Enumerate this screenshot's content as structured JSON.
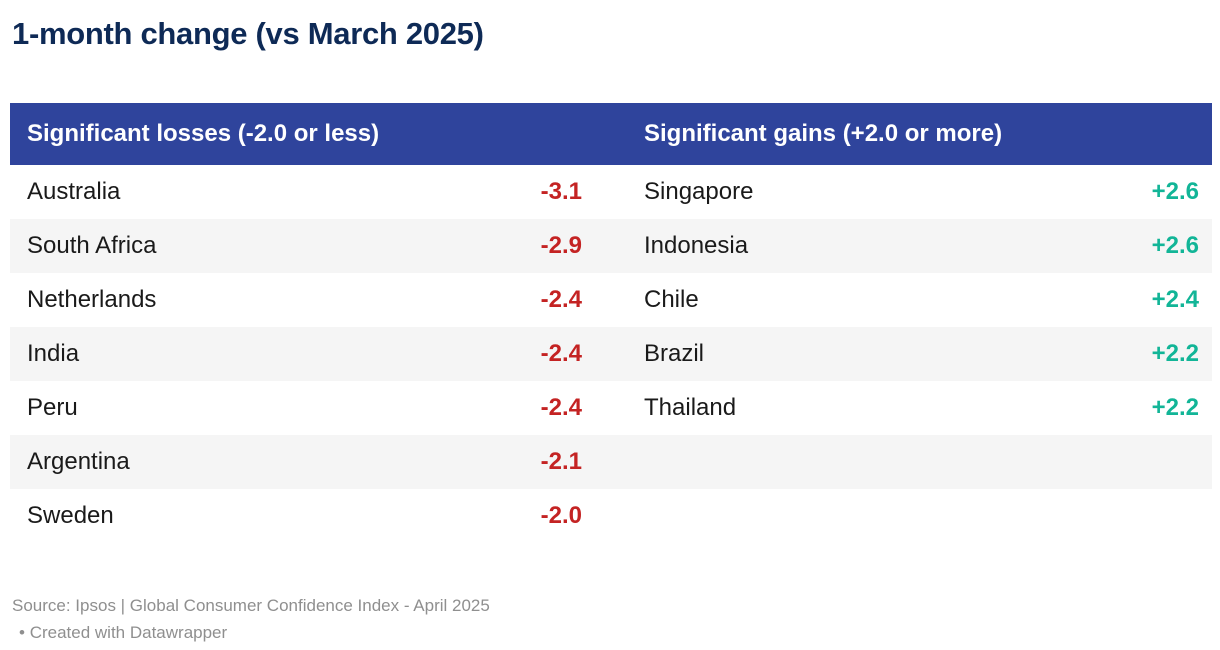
{
  "title": "1-month change (vs March 2025)",
  "table": {
    "header_losses": "Significant losses (-2.0 or less)",
    "header_gains": "Significant gains (+2.0 or more)"
  },
  "chart_data": {
    "type": "table",
    "title": "1-month change (vs March 2025)",
    "columns": [
      "Significant losses (-2.0 or less)",
      "Significant gains (+2.0 or more)"
    ],
    "losses": [
      {
        "country": "Australia",
        "value": "-3.1"
      },
      {
        "country": "South Africa",
        "value": "-2.9"
      },
      {
        "country": "Netherlands",
        "value": "-2.4"
      },
      {
        "country": "India",
        "value": "-2.4"
      },
      {
        "country": "Peru",
        "value": "-2.4"
      },
      {
        "country": "Argentina",
        "value": "-2.1"
      },
      {
        "country": "Sweden",
        "value": "-2.0"
      }
    ],
    "gains": [
      {
        "country": "Singapore",
        "value": "+2.6"
      },
      {
        "country": "Indonesia",
        "value": "+2.6"
      },
      {
        "country": "Chile",
        "value": "+2.4"
      },
      {
        "country": "Brazil",
        "value": "+2.2"
      },
      {
        "country": "Thailand",
        "value": "+2.2"
      }
    ],
    "layout_hints": {
      "zebra_striping": true,
      "loss_values_bold_red": true,
      "gain_values_bold_teal": true
    }
  },
  "footer": {
    "source": "Source: Ipsos | Global Consumer Confidence Index - April 2025",
    "attribution_bullet": "•",
    "attribution": "Created with Datawrapper"
  },
  "colors": {
    "title": "#0e2a56",
    "header_bg": "#2f449c",
    "header_text": "#ffffff",
    "loss_value": "#c42323",
    "gain_value": "#12b597",
    "row_stripe": "#f5f5f5",
    "row_text": "#1a1a1a",
    "footer_text": "#8f8f8f"
  }
}
